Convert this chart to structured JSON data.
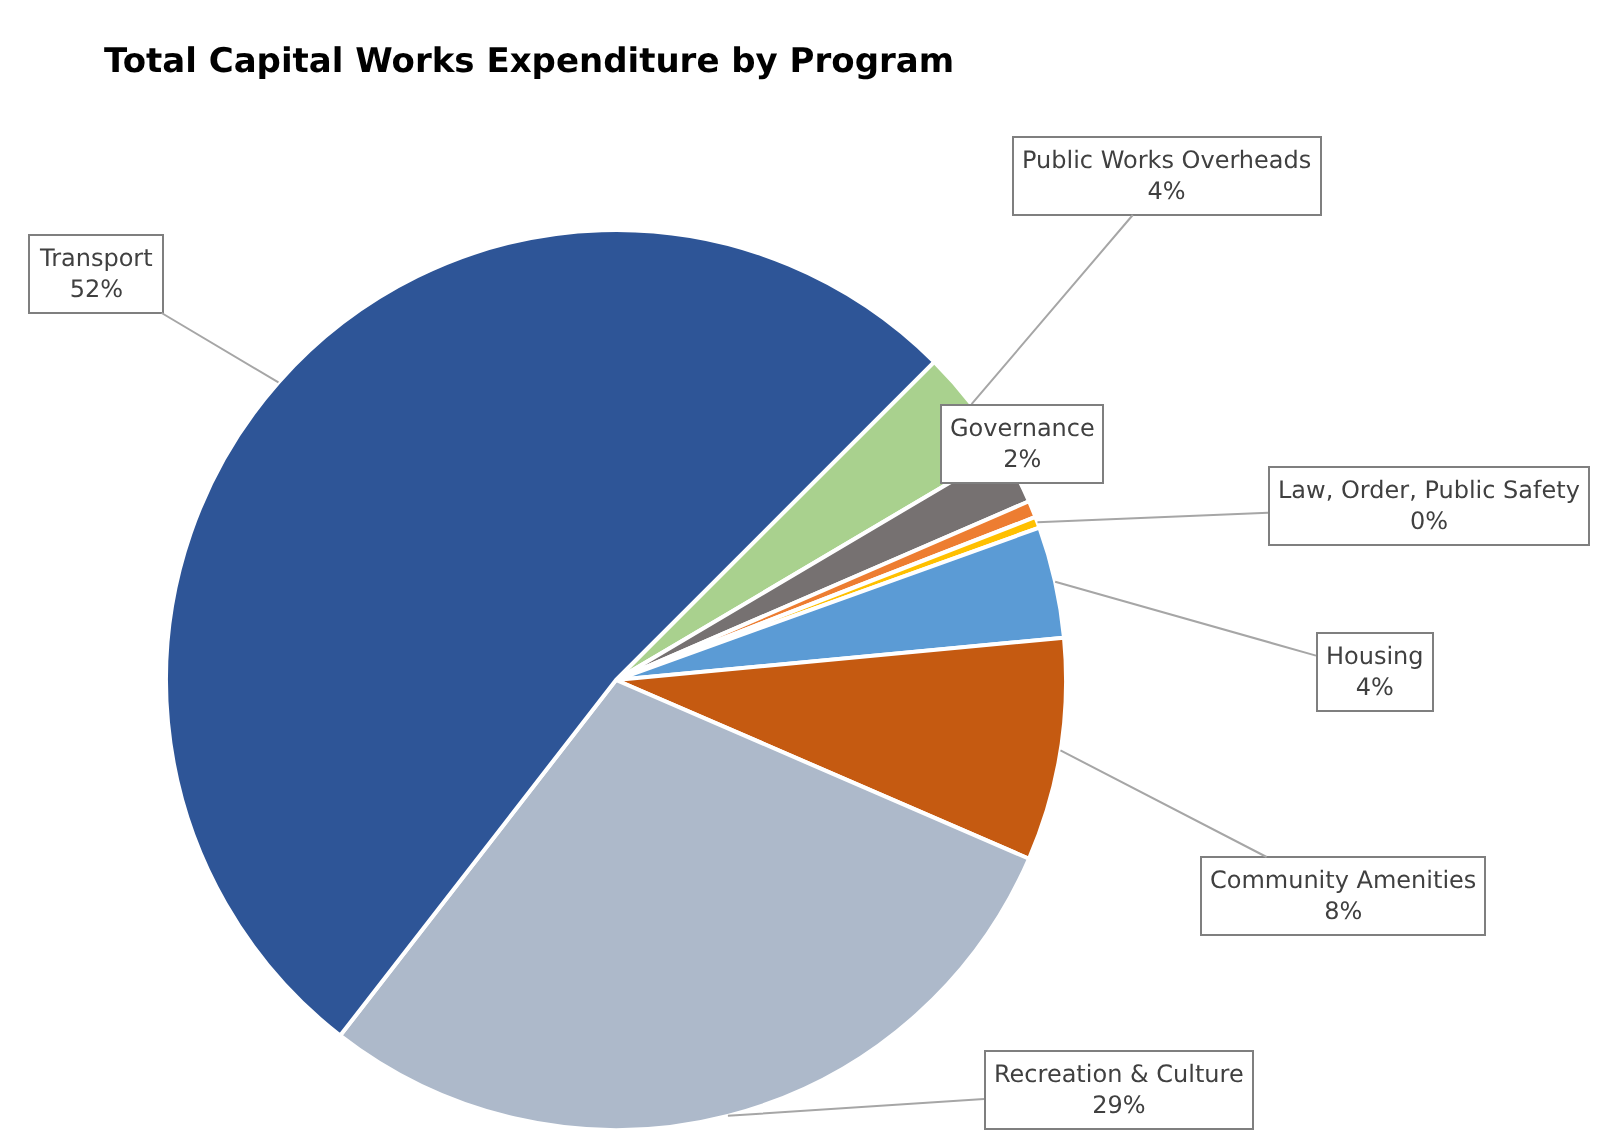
{
  "chart_data": {
    "type": "pie",
    "title": "Total Capital Works Expenditure by Program",
    "categories": [
      "Public Works Overheads",
      "Governance",
      null,
      "Law, Order, Public Safety",
      "Housing",
      "Community Amenities",
      "Recreation & Culture",
      "Transport"
    ],
    "values": [
      4,
      2,
      0.6,
      0.4,
      4,
      8,
      29,
      52
    ],
    "value_labels": [
      "4%",
      "2%",
      null,
      "0%",
      "4%",
      "8%",
      "29%",
      "52%"
    ],
    "colors": [
      "#a9d18e",
      "#767171",
      "#ed7d31",
      "#ffc000",
      "#5b9bd5",
      "#c55a11",
      "#adb9ca",
      "#2e5597"
    ],
    "legend": false
  }
}
